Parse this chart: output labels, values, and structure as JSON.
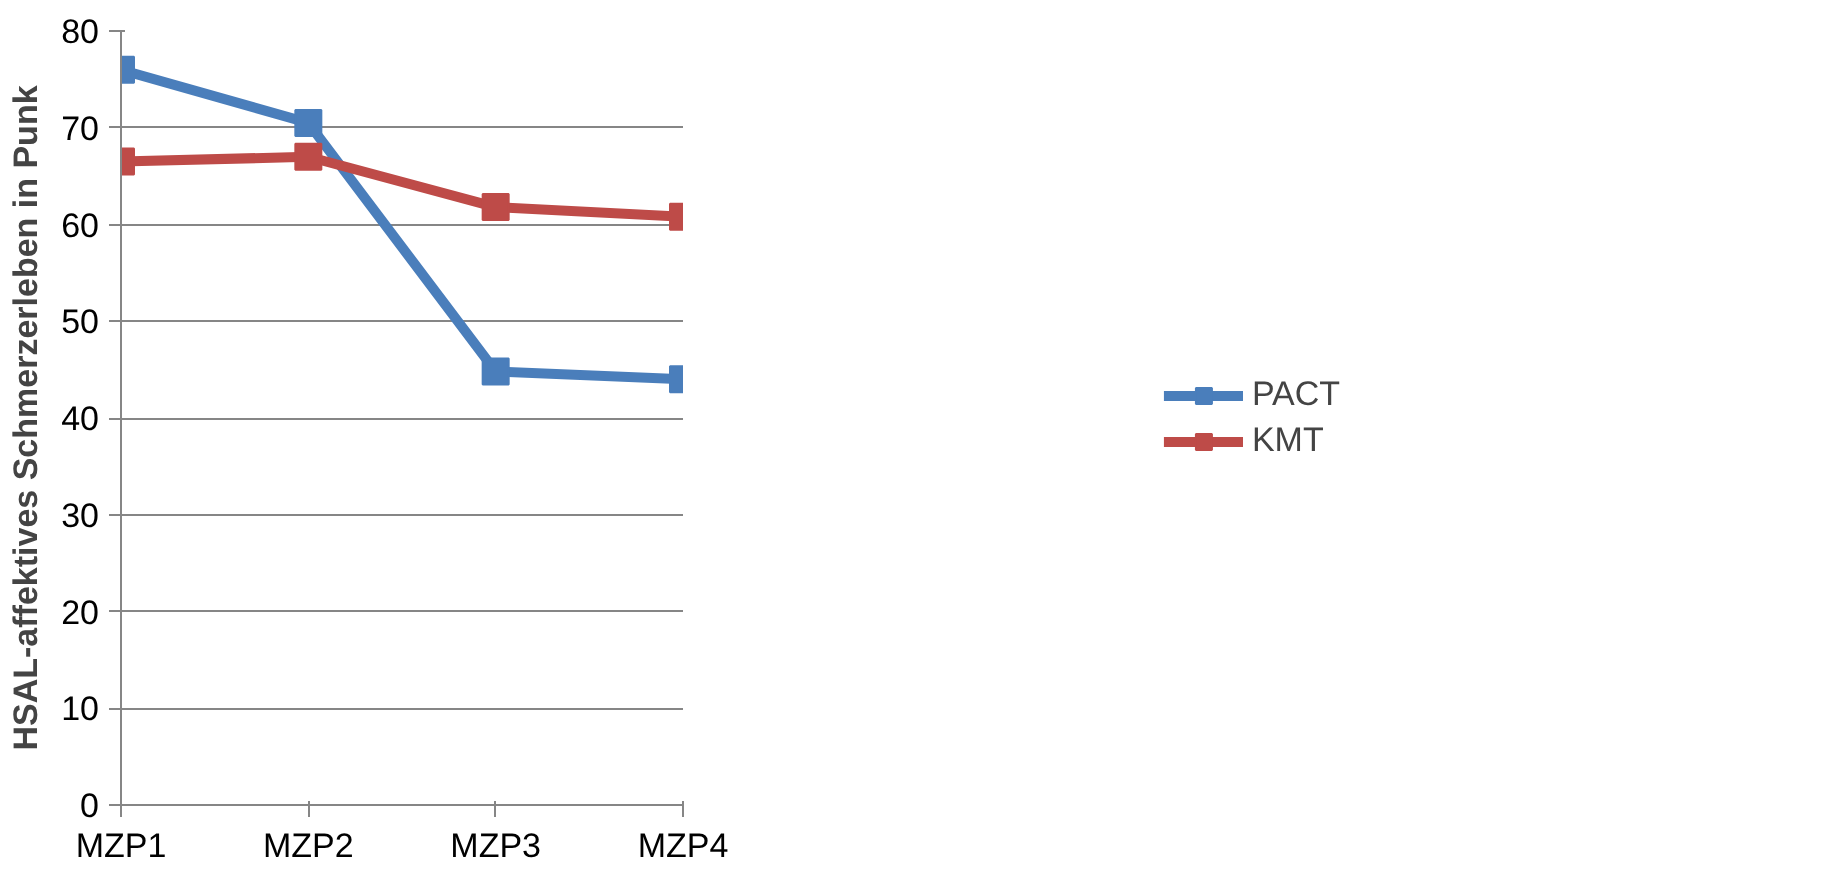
{
  "chart_data": {
    "type": "line",
    "ylabel": "HSAL-affektives Schmerzerleben in Punk",
    "categories": [
      "MZP1",
      "MZP2",
      "MZP3",
      "MZP4"
    ],
    "series": [
      {
        "name": "PACT",
        "color": "#4a7ebb",
        "values": [
          76,
          70.5,
          44.8,
          44
        ]
      },
      {
        "name": "KMT",
        "color": "#be4b48",
        "values": [
          66.5,
          67,
          61.8,
          60.8
        ]
      }
    ],
    "ylim": [
      0,
      80
    ],
    "yticks": [
      0,
      10,
      20,
      30,
      40,
      50,
      60,
      70,
      80
    ],
    "grid": "y",
    "legend": "right",
    "marker": "square",
    "line_style": "solid"
  }
}
